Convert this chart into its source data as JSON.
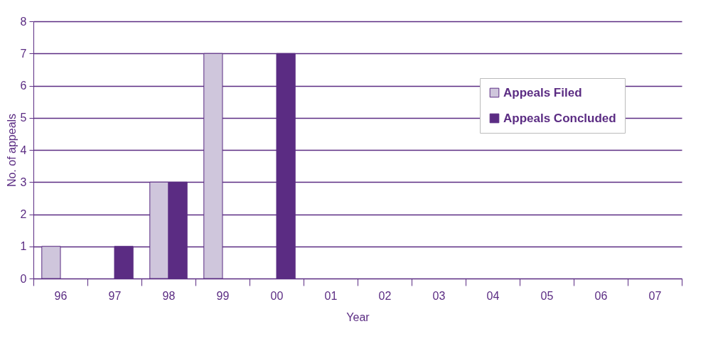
{
  "chart_data": {
    "type": "bar",
    "xlabel": "Year",
    "ylabel": "No. of appeals",
    "categories": [
      "96",
      "97",
      "98",
      "99",
      "00",
      "01",
      "02",
      "03",
      "04",
      "05",
      "06",
      "07"
    ],
    "series": [
      {
        "name": "Appeals Filed",
        "color": "#cfc6dc",
        "values": [
          1,
          0,
          3,
          7,
          0,
          0,
          0,
          0,
          0,
          0,
          0,
          0
        ]
      },
      {
        "name": "Appeals Concluded",
        "color": "#5b2c83",
        "values": [
          0,
          1,
          3,
          0,
          7,
          0,
          0,
          0,
          0,
          0,
          0,
          0
        ]
      }
    ],
    "ylim": [
      0,
      8
    ],
    "yticks": [
      0,
      1,
      2,
      3,
      4,
      5,
      6,
      7,
      8
    ],
    "grid": "y",
    "legend": "top right"
  }
}
